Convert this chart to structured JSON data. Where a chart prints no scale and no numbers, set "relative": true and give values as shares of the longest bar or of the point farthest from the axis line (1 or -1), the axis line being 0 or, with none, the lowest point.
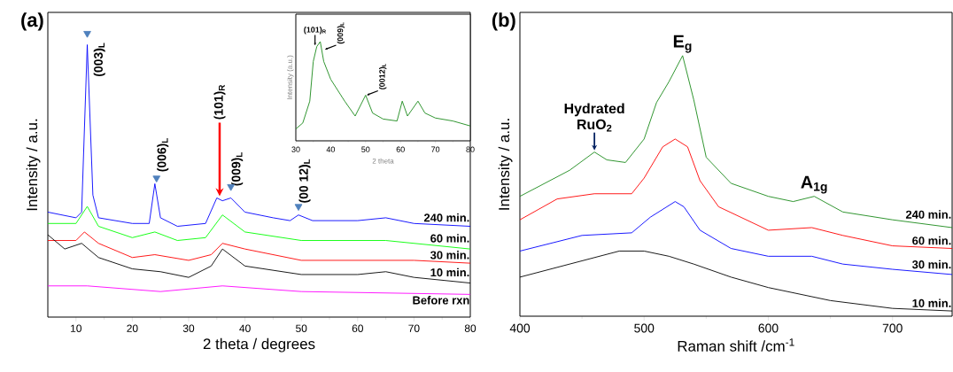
{
  "chart_data": [
    {
      "type": "line",
      "relative": true,
      "xlim": [
        5,
        80
      ],
      "xticks": [
        10,
        20,
        30,
        40,
        50,
        60,
        70,
        80
      ],
      "xlabel": "2 theta / degrees",
      "ylabel": "Intensity / a.u.",
      "annotations": [
        "(a)",
        {
          "text": "(003)$_{L}$",
          "x": 12,
          "y": 0.96
        },
        {
          "text": "(006)$_{L}$",
          "x": 24.3,
          "y": 0.47
        },
        {
          "text": "(101)$_{R}$",
          "x": 35.5,
          "y": 0.42
        },
        {
          "text": "(009)$_{L}$",
          "x": 37.5,
          "y": 0.42
        },
        {
          "text": "(00 12)$_{L}$",
          "x": 49.5,
          "y": 0.36
        }
      ],
      "series": [
        {
          "name": "240 min.",
          "color": "#0000ff",
          "x": [
            5,
            10,
            11,
            12,
            13,
            14,
            20,
            23,
            24,
            25,
            28,
            33,
            35,
            36,
            37.5,
            40,
            45,
            48,
            49.5,
            52,
            60,
            65,
            70,
            80
          ],
          "values": [
            0.37,
            0.35,
            0.37,
            0.96,
            0.43,
            0.35,
            0.33,
            0.33,
            0.47,
            0.35,
            0.32,
            0.33,
            0.42,
            0.41,
            0.42,
            0.37,
            0.35,
            0.34,
            0.36,
            0.34,
            0.34,
            0.35,
            0.33,
            0.32
          ]
        },
        {
          "name": "60 min.",
          "color": "#00ff00",
          "x": [
            5,
            10,
            12,
            14,
            20,
            24,
            28,
            33,
            36,
            40,
            50,
            60,
            65,
            70,
            80
          ],
          "values": [
            0.33,
            0.33,
            0.39,
            0.32,
            0.28,
            0.3,
            0.27,
            0.28,
            0.36,
            0.3,
            0.27,
            0.27,
            0.27,
            0.26,
            0.24
          ]
        },
        {
          "name": "30 min.",
          "color": "#ff0000",
          "x": [
            5,
            10,
            11.5,
            14,
            20,
            24,
            30,
            34,
            36,
            40,
            50,
            60,
            70,
            80
          ],
          "values": [
            0.27,
            0.27,
            0.3,
            0.26,
            0.21,
            0.22,
            0.2,
            0.22,
            0.26,
            0.24,
            0.2,
            0.2,
            0.2,
            0.19
          ]
        },
        {
          "name": "10 min.",
          "color": "#000000",
          "x": [
            5,
            8,
            11,
            14,
            20,
            25,
            30,
            34,
            36,
            40,
            50,
            60,
            65,
            70,
            80
          ],
          "values": [
            0.29,
            0.24,
            0.26,
            0.21,
            0.17,
            0.16,
            0.14,
            0.18,
            0.24,
            0.18,
            0.15,
            0.15,
            0.16,
            0.14,
            0.12
          ]
        },
        {
          "name": "Before rxn",
          "color": "#ff00ff",
          "x": [
            5,
            12,
            25,
            36,
            50,
            80
          ],
          "values": [
            0.11,
            0.11,
            0.09,
            0.11,
            0.09,
            0.08
          ]
        },
        {
          "type": "scatter",
          "marker": "triangle",
          "color": "#4f81bd",
          "x": [
            12,
            24.3,
            37.5,
            49.5
          ],
          "values": [
            1.0,
            0.49,
            0.46,
            0.39
          ]
        }
      ]
    },
    {
      "type": "line",
      "relative": true,
      "xlim": [
        30,
        80
      ],
      "xticks": [
        30,
        40,
        50,
        60,
        70,
        80
      ],
      "xlabel": "2 theta",
      "ylabel": "Intensity (a.u.)",
      "annotations": [
        {
          "text": "(101)$_{R}$",
          "x": 35.5,
          "y": 0.95
        },
        {
          "text": "(009)$_{L}$",
          "x": 38,
          "y": 0.92
        },
        {
          "text": "(0012)$_{L}$",
          "x": 50,
          "y": 0.46
        }
      ],
      "series": [
        {
          "color": "#1a8a1a",
          "x": [
            30,
            32,
            34,
            35,
            36,
            37,
            38,
            40,
            44,
            47,
            50,
            52,
            55,
            59,
            60.5,
            62,
            65,
            67,
            70,
            75,
            80
          ],
          "values": [
            0.12,
            0.18,
            0.4,
            0.8,
            0.95,
            1.0,
            0.8,
            0.62,
            0.4,
            0.25,
            0.46,
            0.28,
            0.22,
            0.2,
            0.4,
            0.25,
            0.4,
            0.28,
            0.23,
            0.2,
            0.15
          ]
        }
      ]
    },
    {
      "type": "line",
      "relative": true,
      "xlim": [
        400,
        748
      ],
      "xticks": [
        400,
        500,
        600,
        700
      ],
      "xlabel": "Raman shift /cm$^{-1}$",
      "ylabel": "Intensity / a.u.",
      "annotations": [
        "(b)",
        {
          "text": "Hydrated RuO$_{2}$",
          "x": 460,
          "y": 0.63
        },
        {
          "text": "E$_{g}$",
          "x": 531,
          "y": 1.0
        },
        {
          "text": "A$_{1g}$",
          "x": 637,
          "y": 0.46
        }
      ],
      "series": [
        {
          "name": "240 min.",
          "color": "#1a8a1a",
          "x": [
            400,
            420,
            440,
            460,
            470,
            485,
            500,
            510,
            520,
            531,
            540,
            550,
            570,
            600,
            620,
            637,
            660,
            700,
            748
          ],
          "values": [
            0.46,
            0.51,
            0.56,
            0.63,
            0.6,
            0.59,
            0.68,
            0.82,
            0.9,
            1.0,
            0.83,
            0.61,
            0.51,
            0.46,
            0.44,
            0.46,
            0.4,
            0.37,
            0.34
          ]
        },
        {
          "name": "60 min.",
          "color": "#ff0000",
          "x": [
            400,
            430,
            460,
            490,
            500,
            515,
            525,
            535,
            545,
            560,
            600,
            635,
            660,
            700,
            748
          ],
          "values": [
            0.37,
            0.45,
            0.47,
            0.47,
            0.53,
            0.65,
            0.68,
            0.65,
            0.52,
            0.42,
            0.33,
            0.34,
            0.31,
            0.27,
            0.26
          ]
        },
        {
          "name": "30 min.",
          "color": "#0000ff",
          "x": [
            400,
            450,
            490,
            505,
            525,
            532,
            545,
            570,
            600,
            635,
            660,
            700,
            748
          ],
          "values": [
            0.25,
            0.31,
            0.32,
            0.38,
            0.44,
            0.42,
            0.33,
            0.26,
            0.23,
            0.23,
            0.2,
            0.18,
            0.16
          ]
        },
        {
          "name": "10 min.",
          "color": "#000000",
          "x": [
            400,
            440,
            480,
            500,
            520,
            540,
            570,
            600,
            650,
            700,
            748
          ],
          "values": [
            0.15,
            0.2,
            0.25,
            0.25,
            0.23,
            0.2,
            0.15,
            0.11,
            0.06,
            0.03,
            0.02
          ]
        }
      ]
    }
  ]
}
